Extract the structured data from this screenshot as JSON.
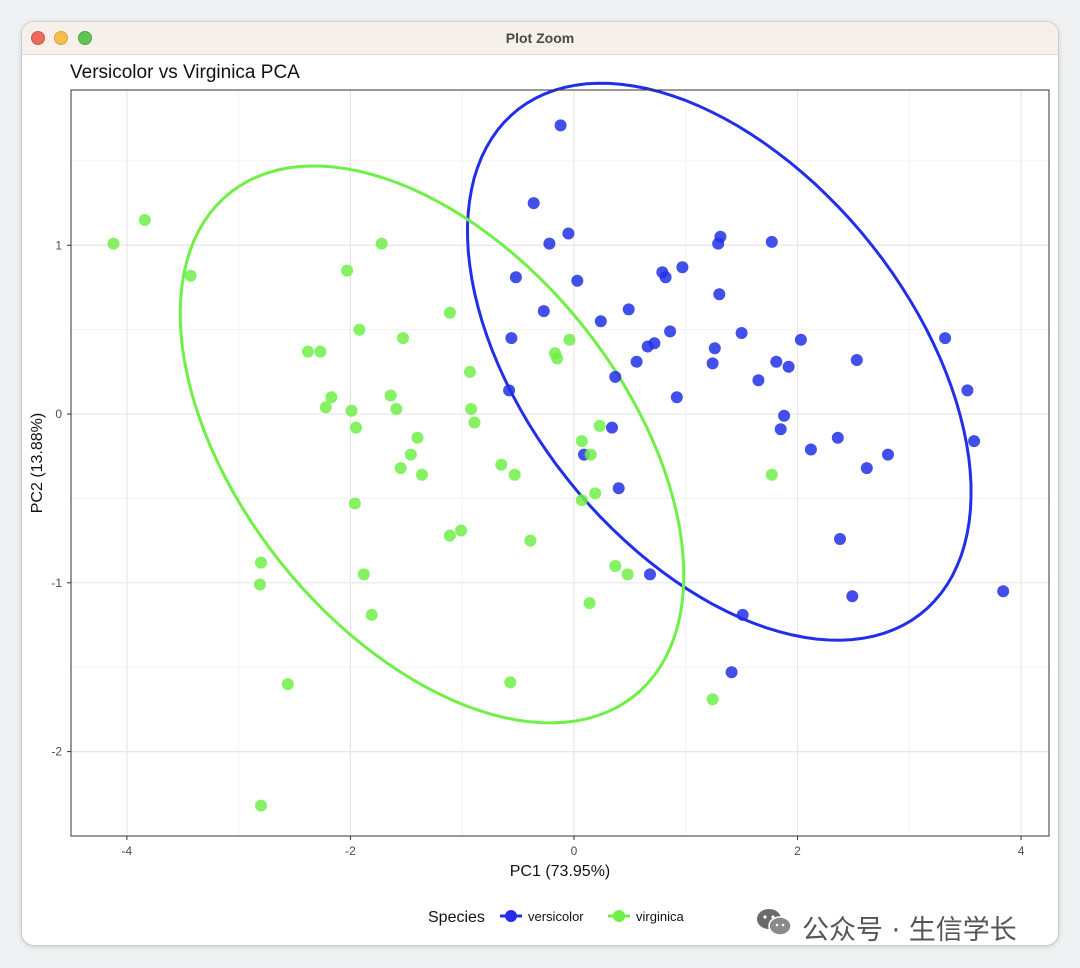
{
  "window": {
    "title": "Plot Zoom"
  },
  "watermark": "公众号 · 生信学长",
  "chart_data": {
    "type": "scatter",
    "title": "Versicolor vs Virginica PCA",
    "xlabel": "PC1 (73.95%)",
    "ylabel": "PC2 (13.88%)",
    "xlim": [
      -4.5,
      4.25
    ],
    "ylim": [
      -2.5,
      1.92
    ],
    "xticks": [
      -4,
      -2,
      0,
      2,
      4
    ],
    "yticks": [
      -2,
      -1,
      0,
      1
    ],
    "xtick_labels": [
      "-4",
      "-2",
      "0",
      "2",
      "4"
    ],
    "ytick_labels": [
      "-2",
      "-1",
      "0",
      "1"
    ],
    "grid": true,
    "legend": {
      "title": "Species",
      "position": "bottom"
    },
    "colors": {
      "versicolor": "#2130e8",
      "virginica": "#6ff046"
    },
    "series": [
      {
        "name": "versicolor",
        "color": "#2130e8",
        "points": [
          [
            -0.12,
            1.71
          ],
          [
            -0.36,
            1.25
          ],
          [
            -0.05,
            1.07
          ],
          [
            -0.22,
            1.01
          ],
          [
            1.31,
            1.05
          ],
          [
            1.29,
            1.01
          ],
          [
            1.77,
            1.02
          ],
          [
            0.97,
            0.87
          ],
          [
            0.79,
            0.84
          ],
          [
            0.82,
            0.81
          ],
          [
            -0.52,
            0.81
          ],
          [
            0.03,
            0.79
          ],
          [
            1.3,
            0.71
          ],
          [
            0.49,
            0.62
          ],
          [
            -0.27,
            0.61
          ],
          [
            0.24,
            0.55
          ],
          [
            -0.56,
            0.45
          ],
          [
            0.86,
            0.49
          ],
          [
            1.5,
            0.48
          ],
          [
            2.03,
            0.44
          ],
          [
            3.32,
            0.45
          ],
          [
            0.72,
            0.42
          ],
          [
            0.66,
            0.4
          ],
          [
            1.26,
            0.39
          ],
          [
            0.56,
            0.31
          ],
          [
            1.24,
            0.3
          ],
          [
            1.81,
            0.31
          ],
          [
            2.53,
            0.32
          ],
          [
            1.92,
            0.28
          ],
          [
            0.37,
            0.22
          ],
          [
            1.65,
            0.2
          ],
          [
            3.52,
            0.14
          ],
          [
            -0.58,
            0.14
          ],
          [
            0.92,
            0.1
          ],
          [
            1.88,
            -0.01
          ],
          [
            1.85,
            -0.09
          ],
          [
            0.34,
            -0.08
          ],
          [
            2.36,
            -0.14
          ],
          [
            3.58,
            -0.16
          ],
          [
            2.12,
            -0.21
          ],
          [
            0.09,
            -0.24
          ],
          [
            2.81,
            -0.24
          ],
          [
            2.62,
            -0.32
          ],
          [
            0.4,
            -0.44
          ],
          [
            2.38,
            -0.74
          ],
          [
            0.68,
            -0.95
          ],
          [
            3.84,
            -1.05
          ],
          [
            2.49,
            -1.08
          ],
          [
            1.51,
            -1.19
          ],
          [
            1.41,
            -1.53
          ]
        ]
      },
      {
        "name": "virginica",
        "color": "#6ff046",
        "points": [
          [
            -4.12,
            1.01
          ],
          [
            -3.84,
            1.15
          ],
          [
            -3.43,
            0.82
          ],
          [
            -1.72,
            1.01
          ],
          [
            -2.03,
            0.85
          ],
          [
            -1.11,
            0.6
          ],
          [
            -1.92,
            0.5
          ],
          [
            -1.53,
            0.45
          ],
          [
            -0.04,
            0.44
          ],
          [
            -2.38,
            0.37
          ],
          [
            -2.27,
            0.37
          ],
          [
            -0.17,
            0.36
          ],
          [
            -0.15,
            0.33
          ],
          [
            -0.93,
            0.25
          ],
          [
            -2.17,
            0.1
          ],
          [
            -1.64,
            0.11
          ],
          [
            -2.22,
            0.04
          ],
          [
            -1.99,
            0.02
          ],
          [
            -1.59,
            0.03
          ],
          [
            -0.92,
            0.03
          ],
          [
            -0.89,
            -0.05
          ],
          [
            0.23,
            -0.07
          ],
          [
            -1.95,
            -0.08
          ],
          [
            -1.4,
            -0.14
          ],
          [
            0.07,
            -0.16
          ],
          [
            0.15,
            -0.24
          ],
          [
            -1.46,
            -0.24
          ],
          [
            -0.65,
            -0.3
          ],
          [
            -1.55,
            -0.32
          ],
          [
            -1.36,
            -0.36
          ],
          [
            -0.53,
            -0.36
          ],
          [
            1.77,
            -0.36
          ],
          [
            0.19,
            -0.47
          ],
          [
            0.07,
            -0.51
          ],
          [
            -1.96,
            -0.53
          ],
          [
            -1.01,
            -0.69
          ],
          [
            -1.11,
            -0.72
          ],
          [
            -0.39,
            -0.75
          ],
          [
            -2.8,
            -0.88
          ],
          [
            0.37,
            -0.9
          ],
          [
            0.48,
            -0.95
          ],
          [
            -1.88,
            -0.95
          ],
          [
            -2.81,
            -1.01
          ],
          [
            0.14,
            -1.12
          ],
          [
            -1.81,
            -1.19
          ],
          [
            -2.56,
            -1.6
          ],
          [
            -0.57,
            -1.59
          ],
          [
            1.24,
            -1.69
          ],
          [
            -2.8,
            -2.32
          ]
        ]
      }
    ],
    "ellipses": [
      {
        "name": "versicolor",
        "color": "#2130e8",
        "cx": 1.3,
        "cy": 0.31,
        "a": 2.45,
        "b": 1.34,
        "angle_deg": -28
      },
      {
        "name": "virginica",
        "color": "#6ff046",
        "cx": -1.27,
        "cy": -0.18,
        "a": 2.45,
        "b": 1.34,
        "angle_deg": -28
      }
    ]
  }
}
